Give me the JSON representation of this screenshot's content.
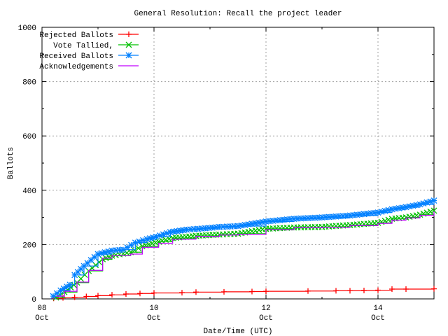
{
  "chart_data": {
    "type": "line",
    "title": "General Resolution: Recall the project leader",
    "xlabel": "Date/Time (UTC)",
    "ylabel": "Ballots",
    "xlim": [
      "10-08 00:00",
      "10-15 00:00"
    ],
    "ylim": [
      0,
      1000
    ],
    "yticks": [
      "0",
      "200",
      "400",
      "600",
      "800",
      "1000"
    ],
    "xticks": [
      {
        "day": "08",
        "month": "Oct",
        "at": "10-08 00:00"
      },
      {
        "day": "10",
        "month": "Oct",
        "at": "10-10 00:00"
      },
      {
        "day": "12",
        "month": "Oct",
        "at": "10-12 00:00"
      },
      {
        "day": "14",
        "month": "Oct",
        "at": "10-14 00:00"
      }
    ],
    "grid": true,
    "legend_position": "top-left",
    "series": [
      {
        "name": "Rejected Ballots",
        "color": "#ff0000",
        "marker": "plus",
        "x": [
          "10-08 05:00",
          "10-08 09:00",
          "10-08 14:00",
          "10-08 19:00",
          "10-09 00:00",
          "10-09 06:00",
          "10-09 12:00",
          "10-09 18:00",
          "10-10 00:00",
          "10-10 12:00",
          "10-10 18:00",
          "10-11 06:00",
          "10-11 18:00",
          "10-12 00:00",
          "10-12 18:00",
          "10-13 06:00",
          "10-13 12:00",
          "10-13 18:00",
          "10-14 00:00",
          "10-14 06:00",
          "10-14 12:00",
          "10-15 00:00"
        ],
        "y": [
          2,
          4,
          6,
          9,
          12,
          15,
          18,
          20,
          22,
          23,
          25,
          26,
          27,
          28,
          29,
          30,
          30,
          31,
          32,
          36,
          36,
          37
        ]
      },
      {
        "name": "Vote Tallied,",
        "color": "#00c000",
        "marker": "cross",
        "x": [
          "10-08 06:00",
          "10-08 09:36",
          "10-08 15:00",
          "10-08 20:00",
          "10-09 02:00",
          "10-09 06:00",
          "10-09 14:00",
          "10-09 19:00",
          "10-10 02:00",
          "10-10 08:00",
          "10-10 18:00",
          "10-11 04:00",
          "10-11 12:00",
          "10-12 00:00",
          "10-12 12:00",
          "10-13 00:00",
          "10-13 12:00",
          "10-14 00:00",
          "10-14 06:00",
          "10-14 12:00",
          "10-14 18:00",
          "10-15 00:00"
        ],
        "y": [
          5,
          25,
          60,
          103,
          146,
          159,
          172,
          194,
          211,
          224,
          232,
          237,
          240,
          258,
          263,
          265,
          272,
          280,
          295,
          300,
          310,
          325
        ]
      },
      {
        "name": "Received Ballots",
        "color": "#0080ff",
        "marker": "star",
        "x": [
          "10-08 04:48",
          "10-08 08:00",
          "10-08 12:00",
          "10-08 14:00",
          "10-08 18:00",
          "10-09 00:00",
          "10-09 06:00",
          "10-09 10:48",
          "10-09 16:00",
          "10-09 21:00",
          "10-10 01:00",
          "10-10 07:00",
          "10-10 14:00",
          "10-10 22:00",
          "10-11 04:00",
          "10-11 12:00",
          "10-12 00:00",
          "10-12 12:00",
          "10-13 00:00",
          "10-13 12:00",
          "10-14 00:00",
          "10-14 06:00",
          "10-14 12:00",
          "10-14 18:00",
          "10-15 00:00"
        ],
        "y": [
          10,
          31,
          52,
          88,
          121,
          165,
          178,
          181,
          207,
          220,
          229,
          246,
          255,
          260,
          265,
          268,
          285,
          295,
          300,
          307,
          318,
          330,
          338,
          348,
          362
        ]
      },
      {
        "name": "Acknowledgements",
        "color": "#c000ff",
        "marker": "none",
        "x": [
          "10-08 06:00",
          "10-08 09:36",
          "10-08 15:00",
          "10-08 20:00",
          "10-09 02:00",
          "10-09 06:00",
          "10-09 14:00",
          "10-09 19:00",
          "10-10 02:00",
          "10-10 08:00",
          "10-10 18:00",
          "10-11 04:00",
          "10-11 12:00",
          "10-12 00:00",
          "10-12 12:00",
          "10-13 00:00",
          "10-13 12:00",
          "10-14 00:00",
          "10-14 06:00",
          "10-14 12:00",
          "10-14 18:00",
          "10-15 00:00"
        ],
        "y": [
          10,
          28,
          62,
          105,
          150,
          160,
          165,
          190,
          205,
          220,
          230,
          235,
          238,
          255,
          262,
          264,
          270,
          278,
          290,
          298,
          308,
          322
        ]
      }
    ]
  }
}
